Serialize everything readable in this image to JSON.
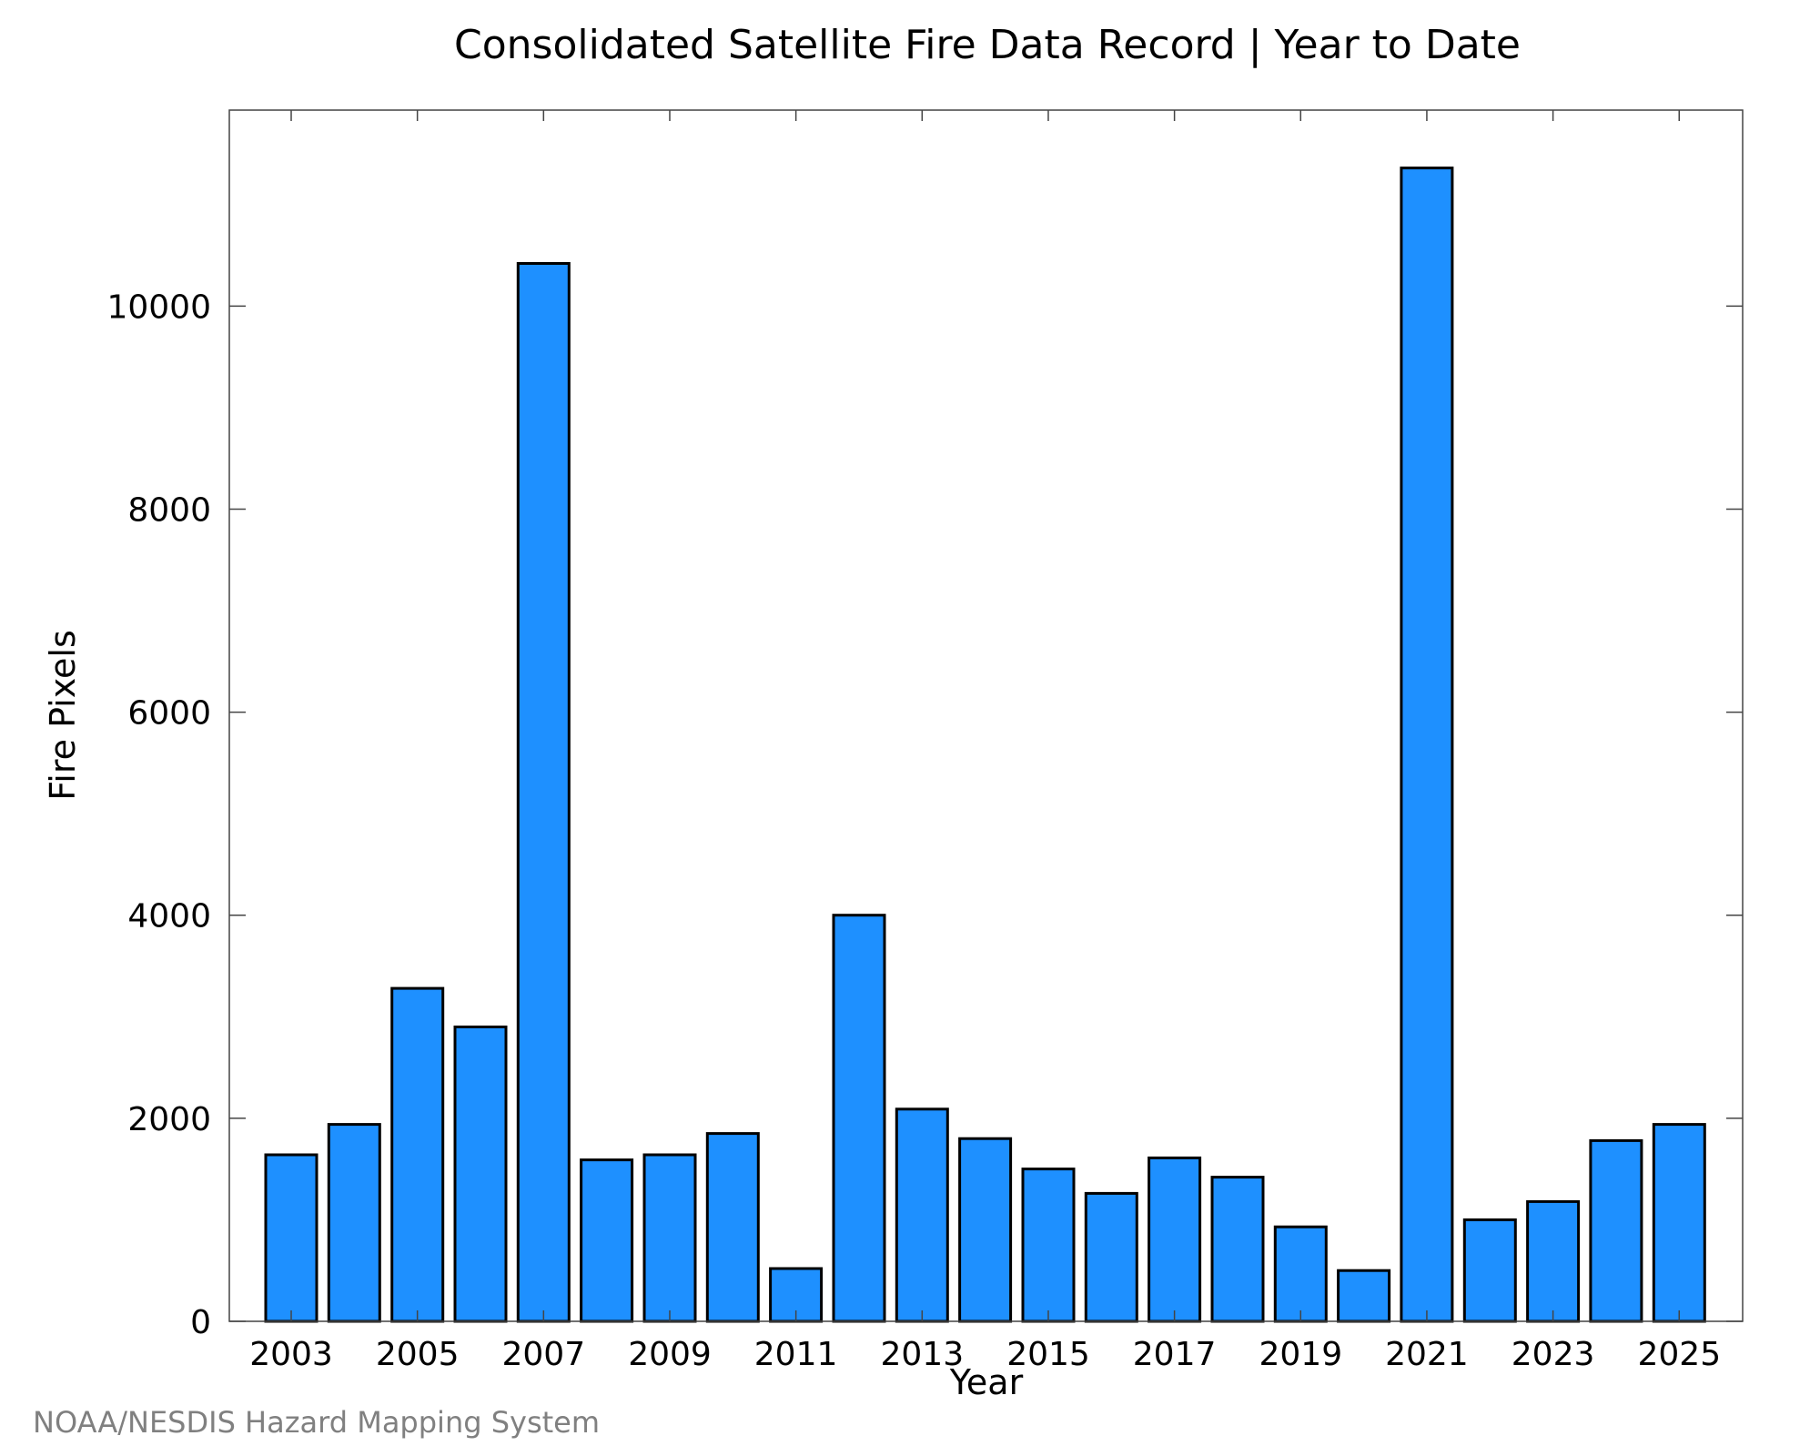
{
  "chart_data": {
    "type": "bar",
    "title": "Consolidated Satellite Fire Data Record | Year to Date",
    "xlabel": "Year",
    "ylabel": "Fire Pixels",
    "categories": [
      "2003",
      "2004",
      "2005",
      "2006",
      "2007",
      "2008",
      "2009",
      "2010",
      "2011",
      "2012",
      "2013",
      "2014",
      "2015",
      "2016",
      "2017",
      "2018",
      "2019",
      "2020",
      "2021",
      "2022",
      "2023",
      "2024",
      "2025"
    ],
    "values": [
      1640,
      1940,
      3280,
      2900,
      10420,
      1590,
      1640,
      1850,
      520,
      4000,
      2090,
      1800,
      1500,
      1260,
      1610,
      1420,
      930,
      500,
      11360,
      1000,
      1180,
      1780,
      1940
    ],
    "x_tick_labels": [
      "2003",
      "2005",
      "2007",
      "2009",
      "2011",
      "2013",
      "2015",
      "2017",
      "2019",
      "2021",
      "2023",
      "2025"
    ],
    "y_ticks": [
      0,
      2000,
      4000,
      6000,
      8000,
      10000
    ],
    "ylim": [
      0,
      11930
    ],
    "bar_color": "#1e90ff",
    "grid": false,
    "legend": "none"
  },
  "credit": "NOAA/NESDIS Hazard Mapping System"
}
